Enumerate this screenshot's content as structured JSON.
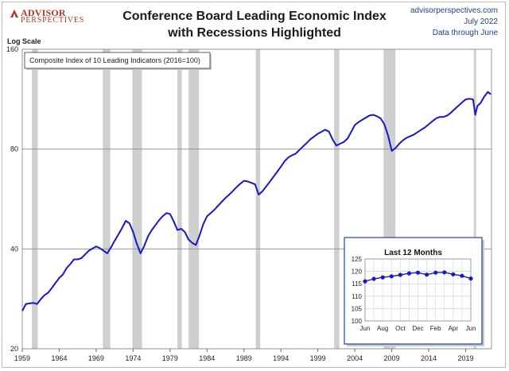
{
  "header": {
    "logo_top": "ADVISOR",
    "logo_bottom": "PERSPECTIVES",
    "title_line1": "Conference Board Leading Economic Index",
    "title_line2": "with Recessions Highlighted",
    "source_site": "advisorperspectives.com",
    "source_date": "July 2022",
    "source_note": "Data through June"
  },
  "chart_data": {
    "type": "line",
    "title": "Conference Board Leading Economic Index with Recessions Highlighted",
    "ylabel": "Log Scale",
    "yscale": "log",
    "ylim": [
      20,
      160
    ],
    "yticks": [
      20,
      40,
      80,
      160
    ],
    "xlim": [
      1959,
      2022.5
    ],
    "xticks": [
      "1959",
      "1964",
      "1969",
      "1974",
      "1979",
      "1984",
      "1989",
      "1994",
      "1999",
      "2004",
      "2009",
      "2014",
      "2019"
    ],
    "legend": "Composite Index of 10 Leading Indicators (2016=100)",
    "legend_placement": "top-left",
    "line_color": "#1a17c9",
    "recession_color": "#cfcfcf",
    "recessions": [
      [
        1960.3,
        1961.1
      ],
      [
        1969.9,
        1970.9
      ],
      [
        1973.9,
        1975.2
      ],
      [
        1980.0,
        1980.6
      ],
      [
        1981.5,
        1982.9
      ],
      [
        1990.6,
        1991.2
      ],
      [
        2001.2,
        2001.9
      ],
      [
        2007.9,
        2009.5
      ],
      [
        2020.1,
        2020.4
      ]
    ],
    "series": [
      {
        "x": [
          1959.0,
          1959.5,
          1960.0,
          1960.5,
          1961.0,
          1961.5,
          1962.0,
          1962.5,
          1963.0,
          1963.5,
          1964.0,
          1964.5,
          1965.0,
          1965.5,
          1966.0,
          1966.5,
          1967.0,
          1967.5,
          1968.0,
          1968.5,
          1969.0,
          1969.5,
          1970.0,
          1970.5,
          1971.0,
          1971.5,
          1972.0,
          1972.5,
          1973.0,
          1973.5,
          1974.0,
          1974.5,
          1975.0,
          1975.5,
          1976.0,
          1976.5,
          1977.0,
          1977.5,
          1978.0,
          1978.5,
          1979.0,
          1979.5,
          1980.0,
          1980.5,
          1981.0,
          1981.5,
          1982.0,
          1982.5,
          1983.0,
          1983.5,
          1984.0,
          1984.5,
          1985.0,
          1985.5,
          1986.0,
          1986.5,
          1987.0,
          1987.5,
          1988.0,
          1988.5,
          1989.0,
          1989.5,
          1990.0,
          1990.5,
          1991.0,
          1991.5,
          1992.0,
          1992.5,
          1993.0,
          1993.5,
          1994.0,
          1994.5,
          1995.0,
          1995.5,
          1996.0,
          1996.5,
          1997.0,
          1997.5,
          1998.0,
          1998.5,
          1999.0,
          1999.5,
          2000.0,
          2000.5,
          2001.0,
          2001.5,
          2002.0,
          2002.5,
          2003.0,
          2003.5,
          2004.0,
          2004.5,
          2005.0,
          2005.5,
          2006.0,
          2006.5,
          2007.0,
          2007.5,
          2008.0,
          2008.5,
          2009.0,
          2009.5,
          2010.0,
          2010.5,
          2011.0,
          2011.5,
          2012.0,
          2012.5,
          2013.0,
          2013.5,
          2014.0,
          2014.5,
          2015.0,
          2015.5,
          2016.0,
          2016.5,
          2017.0,
          2017.5,
          2018.0,
          2018.5,
          2019.0,
          2019.5,
          2020.0,
          2020.3,
          2020.6,
          2021.0,
          2021.5,
          2022.0,
          2022.4
        ],
        "y": [
          26.0,
          27.3,
          27.4,
          27.5,
          27.3,
          28.2,
          29.0,
          29.5,
          30.5,
          31.6,
          32.7,
          33.5,
          35.0,
          36.0,
          37.2,
          37.2,
          37.5,
          38.5,
          39.5,
          40.1,
          40.7,
          40.2,
          39.5,
          38.8,
          40.4,
          42.3,
          44.2,
          46.2,
          48.6,
          47.8,
          45.0,
          41.5,
          38.8,
          40.8,
          43.6,
          45.5,
          47.1,
          48.8,
          50.2,
          51.3,
          51.0,
          48.4,
          45.6,
          46.0,
          45.0,
          42.7,
          41.7,
          41.1,
          44.0,
          47.5,
          50.2,
          51.3,
          52.5,
          54.0,
          55.5,
          57.0,
          58.3,
          59.8,
          61.4,
          62.9,
          64.2,
          63.9,
          63.3,
          62.6,
          58.3,
          59.7,
          61.7,
          63.8,
          66.0,
          68.4,
          70.8,
          73.5,
          75.5,
          76.6,
          77.5,
          79.5,
          81.5,
          83.5,
          85.7,
          87.3,
          89.0,
          90.2,
          91.5,
          90.3,
          85.5,
          82.0,
          83.0,
          84.0,
          86.0,
          90.0,
          94.5,
          96.5,
          98.0,
          99.5,
          101.0,
          101.5,
          100.5,
          99.0,
          95.0,
          88.0,
          79.0,
          80.5,
          83.0,
          85.0,
          86.5,
          87.5,
          88.5,
          90.0,
          91.5,
          93.0,
          95.0,
          97.0,
          99.0,
          100.0,
          100.0,
          101.0,
          103.0,
          105.5,
          108.0,
          110.5,
          113.0,
          113.5,
          113.0,
          101.5,
          108.0,
          110.0,
          115.0,
          119.0,
          117.0
        ]
      }
    ],
    "inset": {
      "title": "Last 12 Months",
      "type": "line",
      "categories": [
        "Jun",
        "Jul",
        "Aug",
        "Sep",
        "Oct",
        "Nov",
        "Dec",
        "Jan",
        "Feb",
        "Mar",
        "Apr",
        "May",
        "Jun"
      ],
      "xtick_labels": [
        "Jun",
        "Aug",
        "Oct",
        "Dec",
        "Feb",
        "Apr",
        "Jun"
      ],
      "values": [
        116.0,
        117.0,
        117.6,
        118.0,
        118.6,
        119.2,
        119.5,
        118.7,
        119.5,
        119.6,
        118.8,
        118.2,
        117.1
      ],
      "ylim": [
        100,
        125
      ],
      "yticks": [
        100,
        105,
        110,
        115,
        120,
        125
      ],
      "grid": true
    }
  }
}
